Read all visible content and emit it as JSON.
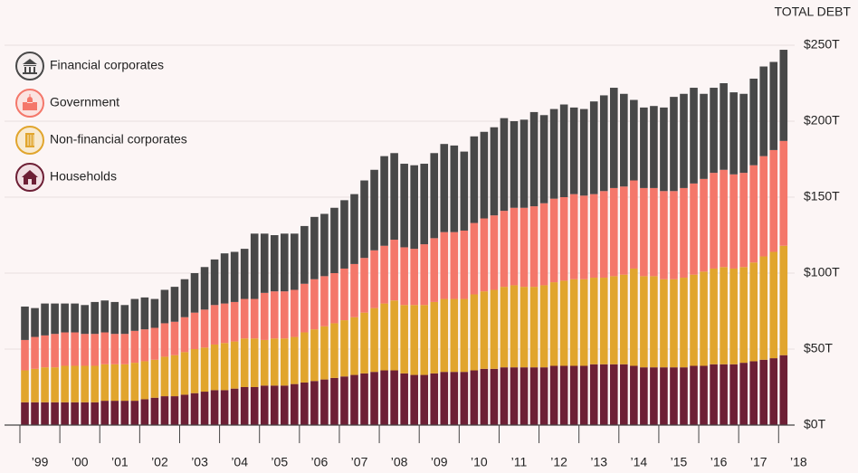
{
  "chart_data": {
    "type": "stacked_bar",
    "axis_title": "TOTAL DEBT",
    "categories": [
      "’99",
      null,
      null,
      null,
      "’00",
      null,
      null,
      null,
      "’01",
      null,
      null,
      null,
      "’02",
      null,
      null,
      null,
      "’03",
      null,
      null,
      null,
      "’04",
      null,
      null,
      null,
      "’05",
      null,
      null,
      null,
      "’06",
      null,
      null,
      null,
      "’07",
      null,
      null,
      null,
      "’08",
      null,
      null,
      null,
      "’09",
      null,
      null,
      null,
      "’10",
      null,
      null,
      null,
      "’11",
      null,
      null,
      null,
      "’12",
      null,
      null,
      null,
      "’13",
      null,
      null,
      null,
      "’14",
      null,
      null,
      null,
      "’15",
      null,
      null,
      null,
      "’16",
      null,
      null,
      null,
      "’17",
      null,
      null,
      null,
      "’18"
    ],
    "series": [
      {
        "name": "Households",
        "color": "#6d1f35",
        "values": [
          15,
          15,
          15,
          15,
          15,
          15,
          15,
          15,
          16,
          16,
          16,
          16,
          17,
          18,
          19,
          19,
          20,
          21,
          22,
          23,
          23,
          24,
          25,
          25,
          26,
          26,
          26,
          27,
          28,
          29,
          30,
          31,
          32,
          33,
          34,
          35,
          36,
          36,
          34,
          33,
          33,
          34,
          35,
          35,
          35,
          36,
          37,
          37,
          38,
          38,
          38,
          38,
          38,
          39,
          39,
          39,
          39,
          40,
          40,
          40,
          40,
          39,
          38,
          38,
          38,
          38,
          38,
          39,
          39,
          40,
          40,
          40,
          41,
          42,
          43,
          44,
          46
        ]
      },
      {
        "name": "Non-financial corporates",
        "color": "#e1a52d",
        "values": [
          21,
          22,
          23,
          23,
          24,
          24,
          24,
          24,
          24,
          24,
          24,
          25,
          25,
          25,
          26,
          27,
          28,
          29,
          29,
          30,
          31,
          31,
          32,
          32,
          30,
          31,
          31,
          31,
          33,
          34,
          35,
          36,
          37,
          38,
          40,
          42,
          44,
          46,
          45,
          46,
          46,
          47,
          48,
          48,
          48,
          50,
          51,
          52,
          53,
          54,
          53,
          53,
          54,
          55,
          56,
          57,
          57,
          57,
          57,
          58,
          59,
          64,
          60,
          60,
          58,
          58,
          59,
          60,
          62,
          63,
          64,
          63,
          63,
          65,
          68,
          70,
          72
        ]
      },
      {
        "name": "Government",
        "color": "#f4776a",
        "values": [
          20,
          21,
          21,
          22,
          22,
          22,
          21,
          21,
          21,
          20,
          20,
          21,
          21,
          21,
          22,
          22,
          23,
          24,
          25,
          26,
          26,
          26,
          26,
          26,
          31,
          31,
          31,
          31,
          32,
          33,
          33,
          33,
          34,
          35,
          36,
          38,
          38,
          40,
          38,
          37,
          40,
          42,
          44,
          44,
          45,
          47,
          48,
          49,
          50,
          51,
          52,
          53,
          54,
          55,
          55,
          56,
          55,
          55,
          57,
          58,
          58,
          58,
          58,
          58,
          58,
          58,
          59,
          60,
          61,
          63,
          64,
          62,
          62,
          64,
          66,
          67,
          69
        ]
      },
      {
        "name": "Financial corporates",
        "color": "#484848",
        "values": [
          22,
          19,
          21,
          20,
          19,
          19,
          19,
          21,
          21,
          21,
          19,
          21,
          21,
          19,
          22,
          23,
          25,
          26,
          28,
          30,
          33,
          33,
          33,
          43,
          39,
          37,
          38,
          37,
          38,
          41,
          41,
          43,
          45,
          46,
          51,
          53,
          59,
          57,
          55,
          55,
          53,
          56,
          58,
          57,
          52,
          57,
          57,
          58,
          61,
          57,
          58,
          62,
          58,
          59,
          61,
          57,
          57,
          61,
          63,
          66,
          61,
          53,
          53,
          54,
          55,
          62,
          62,
          63,
          56,
          56,
          57,
          54,
          52,
          57,
          59,
          58,
          60
        ]
      }
    ],
    "ylim": [
      0,
      250
    ],
    "yticks": [
      {
        "value": 0,
        "label": "$0T"
      },
      {
        "value": 50,
        "label": "$50T"
      },
      {
        "value": 100,
        "label": "$100T"
      },
      {
        "value": 150,
        "label": "$150T"
      },
      {
        "value": 200,
        "label": "$200T"
      },
      {
        "value": 250,
        "label": "$250T"
      }
    ],
    "grid": true,
    "legend": "top-left"
  }
}
